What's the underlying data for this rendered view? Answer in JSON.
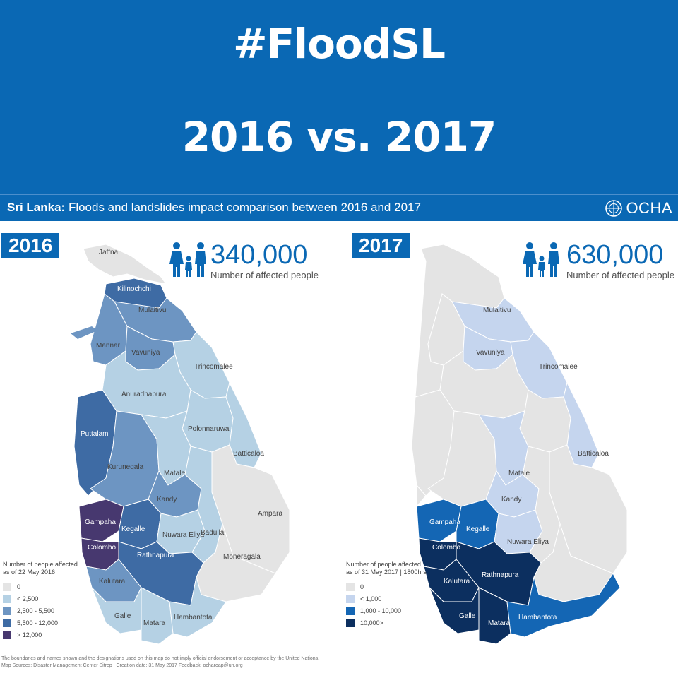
{
  "banner": {
    "title_line1": "#FloodSL",
    "title_line2": "2016 vs. 2017"
  },
  "subheader": {
    "title_bold": "Sri Lanka:",
    "title_rest": "Floods and landslides impact comparison between 2016 and 2017",
    "logo_text": "OCHA",
    "logo_icon": "un-emblem-icon"
  },
  "panels": [
    {
      "year": "2016",
      "affected_count": "340,000",
      "affected_label": "Number of affected people",
      "legend": {
        "title_line1": "Number of people affected",
        "title_line2": "as of 22 May 2016",
        "items": [
          {
            "label": "0",
            "color": "#e4e4e4"
          },
          {
            "label": "< 2,500",
            "color": "#b5d1e4"
          },
          {
            "label": "2,500  - 5,500",
            "color": "#6d95c2"
          },
          {
            "label": "5,500 - 12,000",
            "color": "#3e6ba4"
          },
          {
            "label": "> 12,000",
            "color": "#47386f"
          }
        ]
      },
      "districts": [
        "Jaffna",
        "Kilinochchi",
        "Mulaitivu",
        "Mannar",
        "Vavuniya",
        "Trincomalee",
        "Anuradhapura",
        "Polonnaruwa",
        "Batticaloa",
        "Puttalam",
        "Kurunegala",
        "Matale",
        "Kandy",
        "Ampara",
        "Gampaha",
        "Kegalle",
        "Nuwara Eliya",
        "Badulla",
        "Colombo",
        "Moneragala",
        "Rathnapura",
        "Kalutara",
        "Galle",
        "Matara",
        "Hambantota"
      ]
    },
    {
      "year": "2017",
      "affected_count": "630,000",
      "affected_label": "Number of affected people",
      "legend": {
        "title_line1": "Number of people affected",
        "title_line2": "as of 31 May 2017 | 1800hrs",
        "items": [
          {
            "label": "0",
            "color": "#e4e4e4"
          },
          {
            "label": "< 1,000",
            "color": "#c5d5ee"
          },
          {
            "label": "1,000 - 10,000",
            "color": "#1466b4"
          },
          {
            "label": "10,000>",
            "color": "#0c2f5f"
          }
        ]
      },
      "districts": [
        "Mulaitivu",
        "Vavuniya",
        "Trincomalee",
        "Batticaloa",
        "Matale",
        "Kandy",
        "Gampaha",
        "Kegalle",
        "Nuwara Eliya",
        "Colombo",
        "Rathnapura",
        "Kalutara",
        "Galle",
        "Matara",
        "Hambantota"
      ]
    }
  ],
  "footer": {
    "line1": "The boundaries and names shown and the designations used on this map do not imply official endorsement or acceptance by the United Nations.",
    "line2": "Map Sources: Disaster Management Center Sitrep |   Creation date: 31 May 2017    Feedback: ocharoap@un.org"
  }
}
